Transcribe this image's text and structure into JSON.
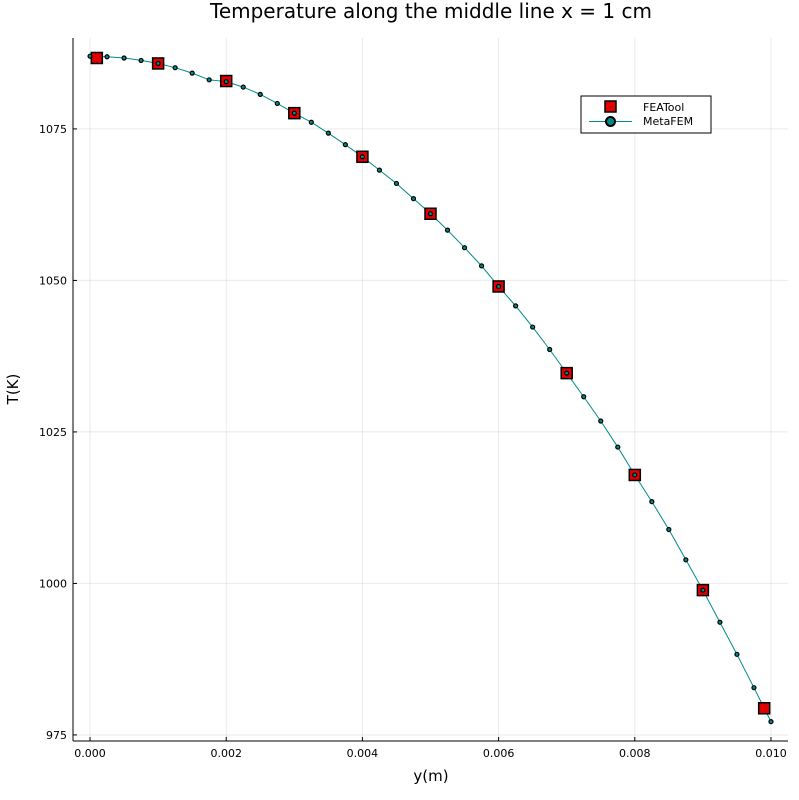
{
  "chart_data": {
    "type": "line",
    "title": "Temperature along the middle line x = 1 cm",
    "xlabel": "y(m)",
    "ylabel": "T(K)",
    "xlim": [
      -0.00025,
      0.01025
    ],
    "ylim": [
      974,
      1090
    ],
    "xticks": [
      0.0,
      0.002,
      0.004,
      0.006,
      0.008,
      0.01
    ],
    "xtick_labels": [
      "0.000",
      "0.002",
      "0.004",
      "0.006",
      "0.008",
      "0.010"
    ],
    "yticks": [
      975,
      1000,
      1025,
      1050,
      1075
    ],
    "ytick_labels": [
      "975",
      "1000",
      "1025",
      "1050",
      "1075"
    ],
    "grid": true,
    "legend_position": "top-right",
    "series": [
      {
        "name": "FEATool",
        "style": "markers",
        "marker": "square",
        "color": "#e00000",
        "x": [
          0.0001,
          0.001,
          0.002,
          0.003,
          0.004,
          0.005,
          0.006,
          0.007,
          0.008,
          0.009,
          0.0099
        ],
        "y": [
          1086.7,
          1085.8,
          1082.9,
          1077.6,
          1070.4,
          1061.0,
          1049.0,
          1034.7,
          1017.9,
          998.9,
          979.4
        ]
      },
      {
        "name": "MetaFEM",
        "style": "line+markers",
        "marker": "circle",
        "color": "#008b8b",
        "x": [
          0.0,
          0.00025,
          0.0005,
          0.00075,
          0.001,
          0.00125,
          0.0015,
          0.00175,
          0.002,
          0.00225,
          0.0025,
          0.00275,
          0.003,
          0.00325,
          0.0035,
          0.00375,
          0.004,
          0.00425,
          0.0045,
          0.00475,
          0.005,
          0.00525,
          0.0055,
          0.00575,
          0.006,
          0.00625,
          0.0065,
          0.00675,
          0.007,
          0.00725,
          0.0075,
          0.00775,
          0.008,
          0.00825,
          0.0085,
          0.00875,
          0.009,
          0.00925,
          0.0095,
          0.00975,
          0.01
        ],
        "y": [
          1087.0,
          1086.9,
          1086.7,
          1086.3,
          1085.8,
          1085.1,
          1084.2,
          1083.1,
          1082.8,
          1081.9,
          1080.7,
          1079.2,
          1077.6,
          1076.1,
          1074.3,
          1072.4,
          1070.4,
          1068.2,
          1066.0,
          1063.5,
          1061.0,
          1058.3,
          1055.4,
          1052.4,
          1049.0,
          1045.8,
          1042.3,
          1038.6,
          1034.7,
          1030.8,
          1026.8,
          1022.5,
          1017.9,
          1013.5,
          1008.9,
          1003.9,
          998.9,
          993.6,
          988.3,
          982.8,
          977.2
        ]
      }
    ]
  }
}
